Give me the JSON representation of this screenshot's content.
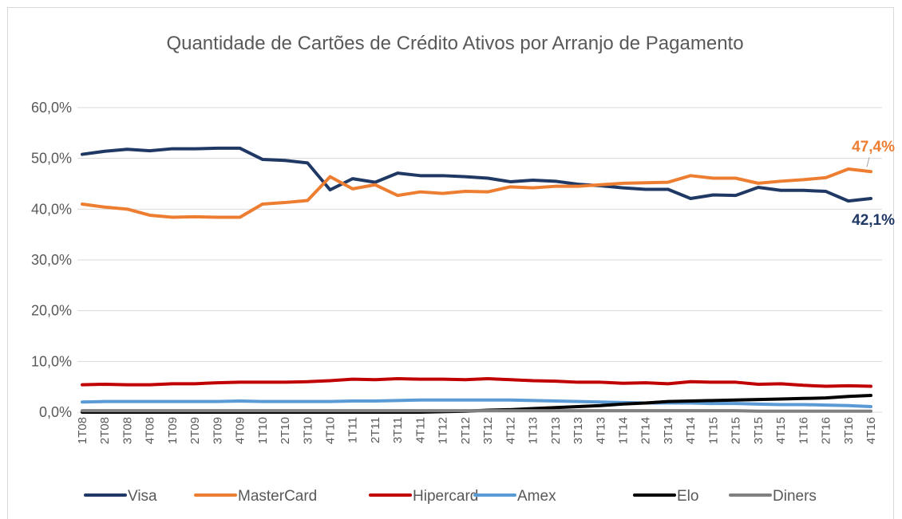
{
  "chart_data": {
    "type": "line",
    "title": "Quantidade de Cartões de Crédito Ativos por Arranjo de Pagamento",
    "categories": [
      "1T08",
      "2T08",
      "3T08",
      "4T08",
      "1T09",
      "2T09",
      "3T09",
      "4T09",
      "1T10",
      "2T10",
      "3T10",
      "4T10",
      "1T11",
      "2T11",
      "3T11",
      "4T11",
      "1T12",
      "2T12",
      "3T12",
      "4T12",
      "1T13",
      "2T13",
      "3T13",
      "4T13",
      "1T14",
      "2T14",
      "3T14",
      "4T14",
      "1T15",
      "2T15",
      "3T15",
      "4T15",
      "1T16",
      "2T16",
      "3T16",
      "4T16"
    ],
    "series": [
      {
        "name": "Visa",
        "color": "#1f3864",
        "values": [
          50.8,
          51.4,
          51.8,
          51.5,
          51.9,
          51.9,
          52.0,
          52.0,
          49.8,
          49.6,
          49.1,
          43.8,
          46.0,
          45.3,
          47.1,
          46.6,
          46.6,
          46.4,
          46.1,
          45.4,
          45.7,
          45.5,
          44.9,
          44.6,
          44.2,
          43.9,
          43.9,
          42.1,
          42.8,
          42.7,
          44.3,
          43.7,
          43.7,
          43.5,
          41.6,
          42.1
        ],
        "value_labels": [
          null,
          null,
          null,
          null,
          null,
          null,
          null,
          null,
          null,
          null,
          null,
          null,
          null,
          null,
          null,
          null,
          null,
          null,
          null,
          null,
          null,
          null,
          null,
          null,
          null,
          null,
          null,
          null,
          null,
          null,
          null,
          null,
          null,
          null,
          null,
          "42,1%"
        ]
      },
      {
        "name": "MasterCard",
        "color": "#ed7d31",
        "values": [
          41.0,
          40.4,
          40.0,
          38.8,
          38.4,
          38.5,
          38.4,
          38.4,
          41.0,
          41.3,
          41.7,
          46.4,
          44.0,
          44.8,
          42.7,
          43.4,
          43.1,
          43.5,
          43.4,
          44.4,
          44.2,
          44.5,
          44.5,
          44.8,
          45.1,
          45.2,
          45.3,
          46.6,
          46.1,
          46.1,
          45.1,
          45.5,
          45.8,
          46.2,
          47.9,
          47.4
        ],
        "value_labels": [
          null,
          null,
          null,
          null,
          null,
          null,
          null,
          null,
          null,
          null,
          null,
          null,
          null,
          null,
          null,
          null,
          null,
          null,
          null,
          null,
          null,
          null,
          null,
          null,
          null,
          null,
          null,
          null,
          null,
          null,
          null,
          null,
          null,
          null,
          null,
          "47,4%"
        ]
      },
      {
        "name": "Hipercard",
        "color": "#c00000",
        "values": [
          5.4,
          5.5,
          5.4,
          5.4,
          5.6,
          5.6,
          5.8,
          5.9,
          5.9,
          5.9,
          6.0,
          6.2,
          6.5,
          6.4,
          6.6,
          6.5,
          6.5,
          6.4,
          6.6,
          6.4,
          6.2,
          6.1,
          5.9,
          5.9,
          5.7,
          5.8,
          5.6,
          6.0,
          5.9,
          5.9,
          5.5,
          5.6,
          5.3,
          5.1,
          5.2,
          5.1
        ]
      },
      {
        "name": "Amex",
        "color": "#5b9bd5",
        "values": [
          2.0,
          2.1,
          2.1,
          2.1,
          2.1,
          2.1,
          2.1,
          2.2,
          2.1,
          2.1,
          2.1,
          2.1,
          2.2,
          2.2,
          2.3,
          2.4,
          2.4,
          2.4,
          2.4,
          2.4,
          2.3,
          2.2,
          2.1,
          2.0,
          1.9,
          1.8,
          1.8,
          1.8,
          1.7,
          1.7,
          1.6,
          1.5,
          1.5,
          1.4,
          1.3,
          1.1
        ]
      },
      {
        "name": "Elo",
        "color": "#000000",
        "values": [
          0.0,
          0.0,
          0.0,
          0.0,
          0.0,
          0.0,
          0.0,
          0.0,
          0.0,
          0.0,
          0.0,
          0.0,
          0.0,
          0.0,
          0.0,
          0.0,
          0.1,
          0.2,
          0.4,
          0.5,
          0.7,
          0.9,
          1.1,
          1.3,
          1.6,
          1.8,
          2.1,
          2.2,
          2.3,
          2.4,
          2.5,
          2.6,
          2.7,
          2.8,
          3.1,
          3.3
        ]
      },
      {
        "name": "Diners",
        "color": "#808080",
        "values": [
          0.3,
          0.3,
          0.3,
          0.3,
          0.3,
          0.3,
          0.3,
          0.3,
          0.3,
          0.3,
          0.3,
          0.3,
          0.3,
          0.3,
          0.3,
          0.3,
          0.3,
          0.3,
          0.3,
          0.3,
          0.3,
          0.3,
          0.3,
          0.3,
          0.3,
          0.3,
          0.3,
          0.3,
          0.3,
          0.3,
          0.2,
          0.2,
          0.2,
          0.2,
          0.2,
          0.2
        ]
      }
    ],
    "ylim": [
      0,
      60
    ],
    "yticks": [
      {
        "value": 0,
        "label": "0,0%"
      },
      {
        "value": 10,
        "label": "10,0%"
      },
      {
        "value": 20,
        "label": "20,0%"
      },
      {
        "value": 30,
        "label": "30,0%"
      },
      {
        "value": 40,
        "label": "40,0%"
      },
      {
        "value": 50,
        "label": "50,0%"
      },
      {
        "value": 60,
        "label": "60,0%"
      }
    ],
    "grid": true,
    "legend": "bottom"
  }
}
